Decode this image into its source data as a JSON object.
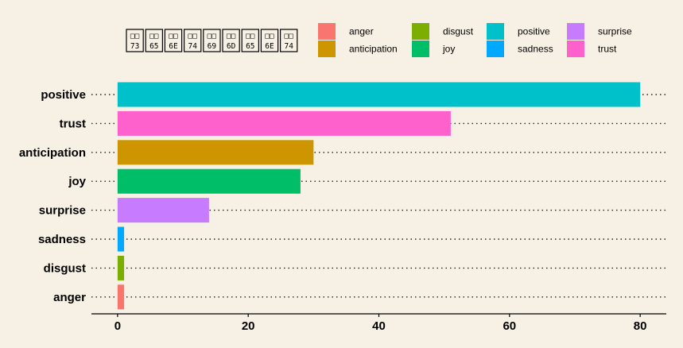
{
  "chart_data": {
    "type": "bar",
    "orientation": "horizontal",
    "title_glyph_codes": [
      "73",
      "65",
      "6E",
      "74",
      "69",
      "6D",
      "65",
      "6E",
      "74"
    ],
    "categories": [
      "positive",
      "trust",
      "anticipation",
      "joy",
      "surprise",
      "sadness",
      "disgust",
      "anger"
    ],
    "values": [
      80,
      51,
      30,
      28,
      14,
      1,
      1,
      1
    ],
    "colors": {
      "anger": "#F8766D",
      "anticipation": "#CD9600",
      "disgust": "#7CAE00",
      "joy": "#00BE67",
      "positive": "#00C1C9",
      "sadness": "#00A9FF",
      "surprise": "#C77CFF",
      "trust": "#FF61CC"
    },
    "legend": {
      "placement": "top-right",
      "entries": [
        "anger",
        "anticipation",
        "disgust",
        "joy",
        "positive",
        "sadness",
        "surprise",
        "trust"
      ]
    },
    "xlim": [
      -4,
      84
    ],
    "xticks": [
      0,
      20,
      40,
      60,
      80
    ],
    "xlabel": "",
    "ylabel": "",
    "grid": "dotted horizontal lines"
  }
}
